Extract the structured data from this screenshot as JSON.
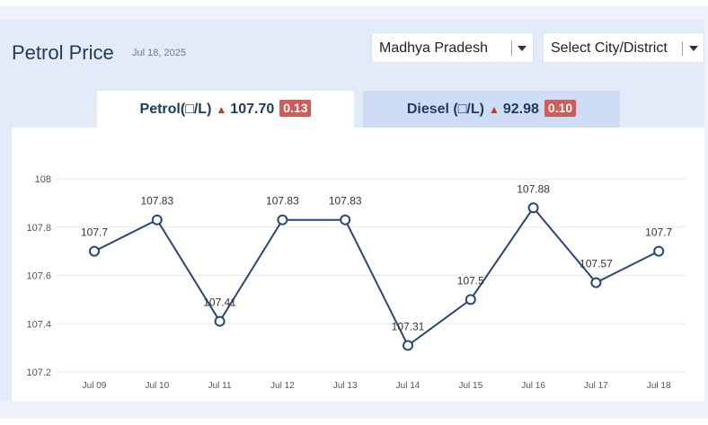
{
  "header": {
    "title": "Petrol Price",
    "date": "Jul 18, 2025",
    "state_select": "Madhya Pradesh",
    "city_select": "Select City/District"
  },
  "tabs": [
    {
      "label": "Petrol(□/L)",
      "price": "107.70",
      "change": "0.13"
    },
    {
      "label": "Diesel (□/L)",
      "price": "92.98",
      "change": "0.10"
    }
  ],
  "colors": {
    "line": "#2c4770",
    "change_badge": "#d35a5a",
    "up_arrow": "#c0392b",
    "active_tab": "#ffffff",
    "inactive_tab": "#cfdcf5"
  },
  "chart_data": {
    "type": "line",
    "categories": [
      "Jul 09",
      "Jul 10",
      "Jul 11",
      "Jul 12",
      "Jul 13",
      "Jul 14",
      "Jul 15",
      "Jul 16",
      "Jul 17",
      "Jul 18"
    ],
    "values": [
      107.7,
      107.83,
      107.41,
      107.83,
      107.83,
      107.31,
      107.5,
      107.88,
      107.57,
      107.7
    ],
    "data_labels": [
      "107.7",
      "107.83",
      "107.41",
      "107.83",
      "107.83",
      "107.31",
      "107.5",
      "107.88",
      "107.57",
      "107.7"
    ],
    "ylim": [
      107.2,
      108
    ],
    "yticks": [
      "107.2",
      "107.4",
      "107.6",
      "107.8",
      "108"
    ],
    "grid": true,
    "title": "",
    "xlabel": "",
    "ylabel": ""
  }
}
